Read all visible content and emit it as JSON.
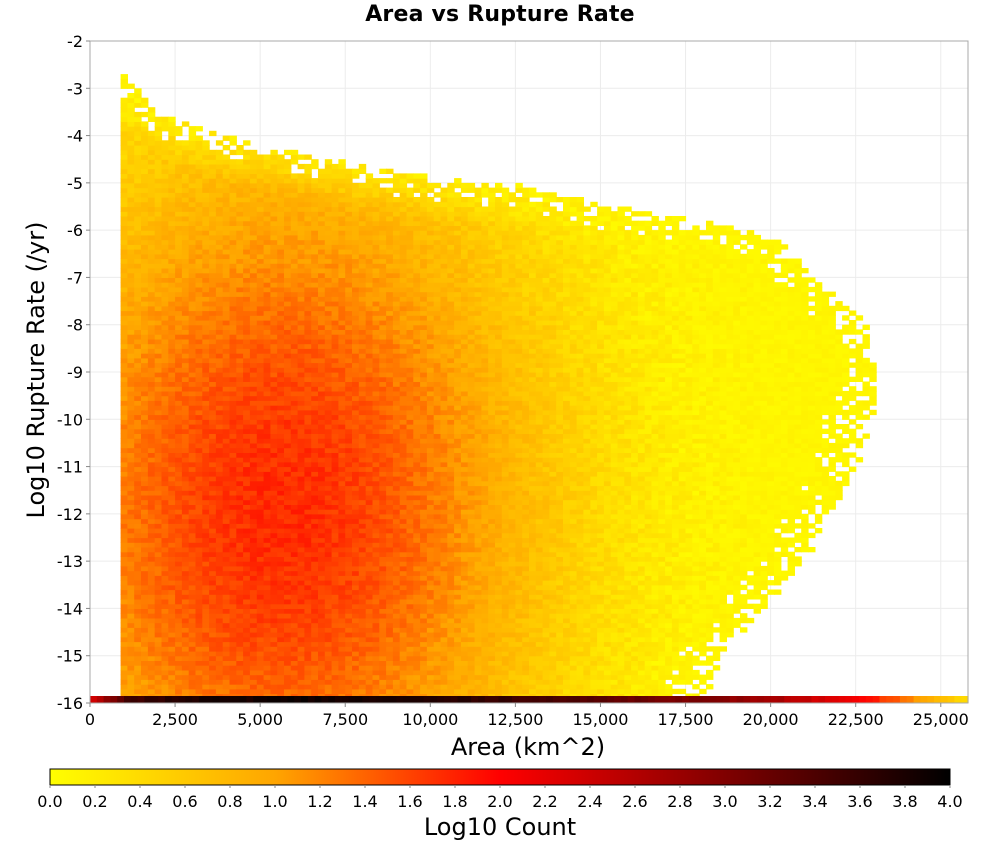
{
  "chart_data": {
    "type": "heatmap",
    "title": "Area vs Rupture Rate",
    "xlabel": "Area (km^2)",
    "ylabel": "Log10 Rupture Rate (/yr)",
    "colorbar_label": "Log10 Count",
    "xlim": [
      0,
      25800
    ],
    "ylim": [
      -16,
      -2
    ],
    "x_ticks": [
      "0",
      "2,500",
      "5,000",
      "7,500",
      "10,000",
      "12,500",
      "15,000",
      "17,500",
      "20,000",
      "22,500",
      "25,000"
    ],
    "x_tick_values": [
      0,
      2500,
      5000,
      7500,
      10000,
      12500,
      15000,
      17500,
      20000,
      22500,
      25000
    ],
    "y_ticks": [
      "-2",
      "-3",
      "-4",
      "-5",
      "-6",
      "-7",
      "-8",
      "-9",
      "-10",
      "-11",
      "-12",
      "-13",
      "-14",
      "-15",
      "-16"
    ],
    "y_tick_values": [
      -2,
      -3,
      -4,
      -5,
      -6,
      -7,
      -8,
      -9,
      -10,
      -11,
      -12,
      -13,
      -14,
      -15,
      -16
    ],
    "colorbar_ticks": [
      "0.0",
      "0.2",
      "0.4",
      "0.6",
      "0.8",
      "1.0",
      "1.2",
      "1.4",
      "1.6",
      "1.8",
      "2.0",
      "2.2",
      "2.4",
      "2.6",
      "2.8",
      "3.0",
      "3.2",
      "3.4",
      "3.6",
      "3.8",
      "4.0"
    ],
    "colorbar_range": [
      0,
      4
    ],
    "colormap": [
      "#ffff00",
      "#ffa500",
      "#ff0000",
      "#800000",
      "#000000"
    ],
    "grid": true,
    "bin_width_x": 200,
    "bin_height_y": 0.1,
    "min_area": 900,
    "bottom_row": {
      "y": -16,
      "x_range": [
        0,
        25700
      ],
      "log10_count_profile": [
        {
          "x": 0,
          "value": 2.4
        },
        {
          "x": 1000,
          "value": 3.5
        },
        {
          "x": 3000,
          "value": 3.8
        },
        {
          "x": 6000,
          "value": 3.9
        },
        {
          "x": 9000,
          "value": 3.8
        },
        {
          "x": 12000,
          "value": 3.6
        },
        {
          "x": 15000,
          "value": 3.3
        },
        {
          "x": 18000,
          "value": 3.0
        },
        {
          "x": 20000,
          "value": 2.7
        },
        {
          "x": 21500,
          "value": 2.3
        },
        {
          "x": 23000,
          "value": 1.8
        },
        {
          "x": 24000,
          "value": 1.2
        },
        {
          "x": 25700,
          "value": 0.3
        }
      ]
    },
    "upper_envelope": [
      {
        "x": 900,
        "y": -2.7
      },
      {
        "x": 1800,
        "y": -3.5
      },
      {
        "x": 3500,
        "y": -4.0
      },
      {
        "x": 6000,
        "y": -4.4
      },
      {
        "x": 8000,
        "y": -4.7
      },
      {
        "x": 10000,
        "y": -4.9
      },
      {
        "x": 12500,
        "y": -5.1
      },
      {
        "x": 15000,
        "y": -5.5
      },
      {
        "x": 17500,
        "y": -5.8
      },
      {
        "x": 20000,
        "y": -6.2
      },
      {
        "x": 21500,
        "y": -7.2
      },
      {
        "x": 22800,
        "y": -8.0
      },
      {
        "x": 23000,
        "y": -9.7
      },
      {
        "x": 22500,
        "y": -11.0
      },
      {
        "x": 21000,
        "y": -13.0
      },
      {
        "x": 18500,
        "y": -15.0
      },
      {
        "x": 18000,
        "y": -15.9
      }
    ],
    "density_peak": {
      "x": 5500,
      "y": -12,
      "value": 1.75
    }
  }
}
